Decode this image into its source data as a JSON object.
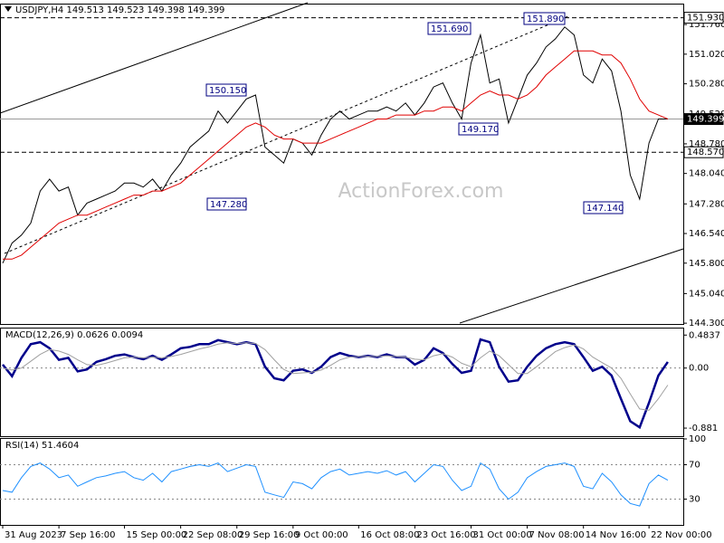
{
  "chart_data": [
    {
      "type": "line",
      "title": "USDJPY,H4 149.513 149.523 149.398 149.399",
      "watermark": "ActionForex.com",
      "ylim": [
        144.28,
        152.26
      ],
      "yticks": [
        {
          "value": 151.76,
          "label": "151.760"
        },
        {
          "value": 151.02,
          "label": "151.020"
        },
        {
          "value": 150.28,
          "label": "150.280"
        },
        {
          "value": 149.52,
          "label": "149.520"
        },
        {
          "value": 148.78,
          "label": "148.780"
        },
        {
          "value": 148.04,
          "label": "148.040"
        },
        {
          "value": 147.28,
          "label": "147.280"
        },
        {
          "value": 146.54,
          "label": "146.540"
        },
        {
          "value": 145.8,
          "label": "145.800"
        },
        {
          "value": 145.04,
          "label": "145.040"
        },
        {
          "value": 144.3,
          "label": "144.300"
        }
      ],
      "hlines": [
        {
          "value": 151.93,
          "label": "151.930",
          "style": "dashed"
        },
        {
          "value": 149.399,
          "label": "149.399",
          "style": "solid"
        },
        {
          "value": 148.57,
          "label": "148.570",
          "style": "dashed"
        }
      ],
      "annotations": [
        "151.690",
        "151.890",
        "150.150",
        "149.170",
        "147.280",
        "147.140"
      ],
      "series": [
        {
          "color": "#000000",
          "values": [
            145.8,
            146.3,
            146.5,
            146.8,
            147.6,
            147.9,
            147.6,
            147.7,
            147.0,
            147.3,
            147.4,
            147.5,
            147.6,
            147.8,
            147.8,
            147.7,
            147.9,
            147.6,
            148.0,
            148.3,
            148.7,
            148.9,
            149.1,
            149.6,
            149.3,
            149.6,
            149.9,
            150.0,
            148.7,
            148.5,
            148.3,
            148.9,
            148.8,
            148.5,
            149.0,
            149.4,
            149.6,
            149.4,
            149.5,
            149.6,
            149.6,
            149.7,
            149.6,
            149.8,
            149.5,
            149.8,
            150.2,
            150.3,
            149.8,
            149.4,
            150.8,
            151.5,
            150.3,
            150.4,
            149.3,
            149.9,
            150.5,
            150.8,
            151.2,
            151.4,
            151.7,
            151.5,
            150.5,
            150.3,
            150.9,
            150.6,
            149.6,
            148.0,
            147.4,
            148.8,
            149.4,
            149.4
          ]
        },
        {
          "color": "#e00000",
          "values": [
            145.9,
            145.9,
            146.0,
            146.2,
            146.4,
            146.6,
            146.8,
            146.9,
            147.0,
            147.0,
            147.1,
            147.2,
            147.3,
            147.4,
            147.5,
            147.5,
            147.6,
            147.6,
            147.7,
            147.8,
            148.0,
            148.2,
            148.4,
            148.6,
            148.8,
            149.0,
            149.2,
            149.3,
            149.2,
            149.0,
            148.9,
            148.9,
            148.8,
            148.8,
            148.8,
            148.9,
            149.0,
            149.1,
            149.2,
            149.3,
            149.4,
            149.4,
            149.5,
            149.5,
            149.5,
            149.6,
            149.6,
            149.7,
            149.7,
            149.6,
            149.8,
            150.0,
            150.1,
            150.0,
            150.0,
            149.9,
            150.0,
            150.2,
            150.5,
            150.7,
            150.9,
            151.1,
            151.1,
            151.1,
            151.0,
            151.0,
            150.8,
            150.4,
            149.9,
            149.6,
            149.5,
            149.4
          ]
        }
      ]
    },
    {
      "type": "line",
      "title": "MACD(12,26,9) 0.0626 0.0094",
      "ylim": [
        -1.0,
        0.58
      ],
      "yticks": [
        0.4837,
        {
          "value": 0,
          "label": "0.00"
        },
        -0.881
      ],
      "grid": false,
      "zero_line": true,
      "series": [
        {
          "color": "#00008b",
          "values": [
            0.05,
            -0.12,
            0.15,
            0.35,
            0.38,
            0.29,
            0.12,
            0.15,
            -0.05,
            -0.02,
            0.09,
            0.13,
            0.18,
            0.2,
            0.16,
            0.13,
            0.18,
            0.12,
            0.2,
            0.29,
            0.31,
            0.35,
            0.35,
            0.41,
            0.38,
            0.35,
            0.38,
            0.35,
            0.02,
            -0.15,
            -0.18,
            -0.04,
            -0.02,
            -0.07,
            0.02,
            0.16,
            0.22,
            0.18,
            0.16,
            0.18,
            0.16,
            0.2,
            0.16,
            0.16,
            0.05,
            0.12,
            0.29,
            0.22,
            0.06,
            -0.07,
            -0.04,
            0.42,
            0.38,
            0.02,
            -0.2,
            -0.18,
            0.02,
            0.18,
            0.29,
            0.35,
            0.38,
            0.35,
            0.16,
            -0.04,
            0.02,
            -0.11,
            -0.45,
            -0.78,
            -0.87,
            -0.51,
            -0.11,
            0.09
          ]
        },
        {
          "color": "#a0a0a0",
          "values": [
            0.0,
            -0.03,
            0.0,
            0.1,
            0.2,
            0.27,
            0.25,
            0.2,
            0.12,
            0.05,
            0.04,
            0.07,
            0.11,
            0.15,
            0.16,
            0.15,
            0.16,
            0.15,
            0.17,
            0.2,
            0.24,
            0.28,
            0.31,
            0.35,
            0.37,
            0.36,
            0.37,
            0.36,
            0.27,
            0.12,
            -0.02,
            -0.08,
            -0.07,
            -0.06,
            -0.03,
            0.04,
            0.12,
            0.16,
            0.17,
            0.17,
            0.17,
            0.18,
            0.17,
            0.16,
            0.13,
            0.12,
            0.18,
            0.21,
            0.16,
            0.07,
            0.02,
            0.15,
            0.25,
            0.18,
            0.05,
            -0.08,
            -0.08,
            0.02,
            0.13,
            0.24,
            0.3,
            0.34,
            0.28,
            0.16,
            0.08,
            0.0,
            -0.15,
            -0.38,
            -0.6,
            -0.62,
            -0.45,
            -0.25
          ]
        }
      ]
    },
    {
      "type": "line",
      "title": "RSI(14) 51.4604",
      "ylim": [
        0,
        100
      ],
      "yticks": [
        100,
        70,
        30
      ],
      "grid": true,
      "categories": [
        "31 Aug 2023",
        null,
        null,
        null,
        null,
        null,
        "7 Sep 16:00",
        null,
        null,
        null,
        null,
        null,
        null,
        "15 Sep 00:00",
        null,
        null,
        null,
        null,
        null,
        "22 Sep 08:00",
        null,
        null,
        null,
        null,
        null,
        "29 Sep 16:00",
        null,
        null,
        null,
        null,
        null,
        "9 Oct 00:00",
        null,
        null,
        null,
        null,
        null,
        null,
        "16 Oct 08:00",
        null,
        null,
        null,
        null,
        null,
        "23 Oct 16:00",
        null,
        null,
        null,
        null,
        null,
        "31 Oct 00:00",
        null,
        null,
        null,
        null,
        null,
        "7 Nov 08:00",
        null,
        null,
        null,
        null,
        null,
        "14 Nov 16:00",
        null,
        null,
        null,
        null,
        null,
        null,
        "22 Nov 00:00",
        null,
        null
      ],
      "series": [
        {
          "color": "#1e90ff",
          "values": [
            40,
            38,
            55,
            68,
            72,
            65,
            55,
            58,
            45,
            50,
            55,
            57,
            60,
            62,
            55,
            52,
            60,
            50,
            62,
            65,
            68,
            70,
            68,
            72,
            62,
            66,
            70,
            68,
            38,
            35,
            32,
            50,
            48,
            42,
            55,
            62,
            65,
            58,
            60,
            62,
            60,
            63,
            58,
            62,
            50,
            60,
            70,
            68,
            52,
            40,
            45,
            72,
            65,
            42,
            30,
            38,
            55,
            62,
            68,
            70,
            72,
            68,
            45,
            42,
            60,
            50,
            35,
            25,
            22,
            48,
            58,
            52
          ]
        }
      ]
    }
  ]
}
